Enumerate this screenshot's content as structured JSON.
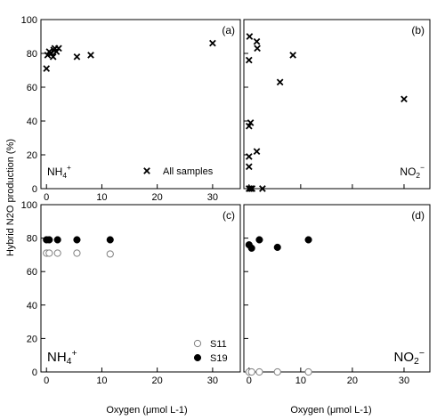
{
  "figure": {
    "ylabel": "Hybrid N2O production (%)",
    "xlabel": "Oxygen (μmol L-1)"
  },
  "chart_data": [
    {
      "id": "a",
      "type": "scatter",
      "panel_letter": "(a)",
      "panel_label": "NH4+",
      "legend": [
        {
          "marker": "cross",
          "label": "All samples"
        }
      ],
      "xlim": [
        -1,
        35
      ],
      "ylim": [
        0,
        100
      ],
      "xticks": [
        0,
        10,
        20,
        30
      ],
      "yticks": [
        0,
        20,
        40,
        60,
        80,
        100
      ],
      "series": [
        {
          "name": "All samples",
          "marker": "cross",
          "color": "#000000",
          "points": [
            [
              0,
              71
            ],
            [
              0.2,
              79
            ],
            [
              0.5,
              81
            ],
            [
              0.9,
              80
            ],
            [
              1.2,
              78
            ],
            [
              1.3,
              82
            ],
            [
              1.5,
              83
            ],
            [
              1.8,
              81
            ],
            [
              2.2,
              83
            ],
            [
              5.5,
              78
            ],
            [
              8,
              79
            ],
            [
              30,
              86
            ]
          ]
        }
      ]
    },
    {
      "id": "b",
      "type": "scatter",
      "panel_letter": "(b)",
      "panel_label": "NO2-",
      "xlim": [
        -1,
        35
      ],
      "ylim": [
        0,
        100
      ],
      "xticks": [
        0,
        10,
        20,
        30
      ],
      "yticks": [
        0,
        20,
        40,
        60,
        80,
        100
      ],
      "series": [
        {
          "name": "",
          "marker": "cross",
          "color": "#000000",
          "points": [
            [
              0,
              76
            ],
            [
              0.1,
              90
            ],
            [
              0,
              37
            ],
            [
              0.3,
              39
            ],
            [
              0,
              19
            ],
            [
              0,
              13
            ],
            [
              0,
              0
            ],
            [
              0.3,
              0
            ],
            [
              0.6,
              0
            ],
            [
              1.5,
              87
            ],
            [
              1.6,
              83
            ],
            [
              1.5,
              22
            ],
            [
              2.6,
              0
            ],
            [
              6,
              63
            ],
            [
              8.5,
              79
            ],
            [
              30,
              53
            ]
          ]
        }
      ]
    },
    {
      "id": "c",
      "type": "scatter",
      "panel_letter": "(c)",
      "panel_label": "NH4+",
      "legend": [
        {
          "marker": "open-circle",
          "label": "S11"
        },
        {
          "marker": "filled-circle",
          "label": "S19"
        }
      ],
      "xlim": [
        -1,
        35
      ],
      "ylim": [
        0,
        100
      ],
      "xticks": [
        0,
        10,
        20,
        30
      ],
      "yticks": [
        0,
        20,
        40,
        60,
        80,
        100
      ],
      "series": [
        {
          "name": "S11",
          "marker": "open-circle",
          "color": "#808080",
          "points": [
            [
              0,
              71
            ],
            [
              0.5,
              71
            ],
            [
              2,
              71
            ],
            [
              5.5,
              71
            ],
            [
              11.5,
              70.5
            ]
          ]
        },
        {
          "name": "S19",
          "marker": "filled-circle",
          "color": "#000000",
          "points": [
            [
              0,
              79
            ],
            [
              0.5,
              79
            ],
            [
              2,
              79
            ],
            [
              5.5,
              79
            ],
            [
              11.5,
              79
            ]
          ]
        }
      ]
    },
    {
      "id": "d",
      "type": "scatter",
      "panel_letter": "(d)",
      "panel_label": "NO2-",
      "xlim": [
        -1,
        35
      ],
      "ylim": [
        0,
        100
      ],
      "xticks": [
        0,
        10,
        20,
        30
      ],
      "yticks": [
        0,
        20,
        40,
        60,
        80,
        100
      ],
      "series": [
        {
          "name": "S11",
          "marker": "open-circle",
          "color": "#808080",
          "points": [
            [
              0,
              0
            ],
            [
              0.5,
              0
            ],
            [
              2,
              0
            ],
            [
              5.5,
              0
            ],
            [
              11.5,
              0
            ]
          ]
        },
        {
          "name": "S19",
          "marker": "filled-circle",
          "color": "#000000",
          "points": [
            [
              0,
              76
            ],
            [
              0.5,
              74
            ],
            [
              2,
              79
            ],
            [
              5.5,
              74.5
            ],
            [
              11.5,
              79
            ]
          ]
        }
      ]
    }
  ]
}
